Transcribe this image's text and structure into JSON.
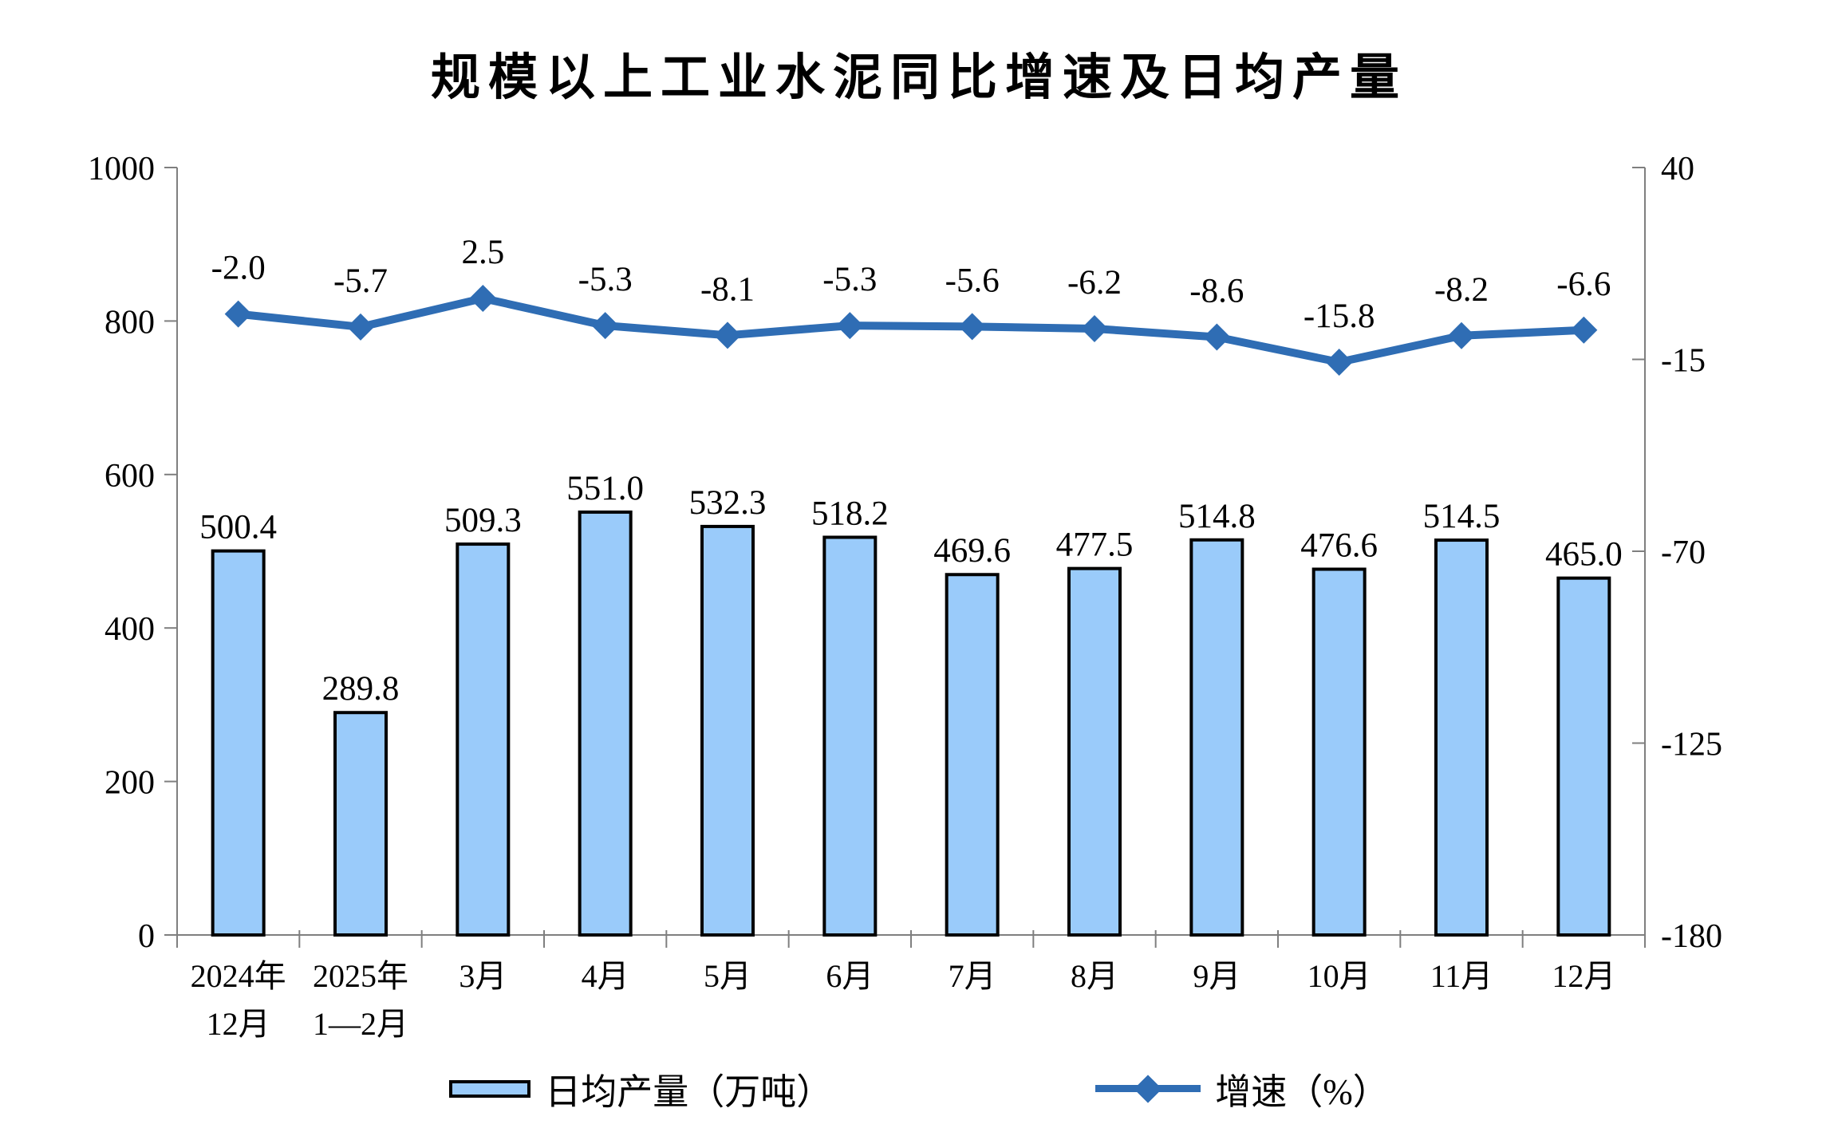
{
  "title": "规模以上工业水泥同比增速及日均产量",
  "legend": {
    "bar_label": "日均产量（万吨）",
    "line_label": "增速（%）"
  },
  "colors": {
    "bar_fill": "#9ACBFA",
    "bar_border": "#000000",
    "line": "#2F6DB4",
    "axis": "#7F7F7F",
    "text": "#000000"
  },
  "chart_data": {
    "type": "bar",
    "subtype": "combo-bar-line",
    "title": "规模以上工业水泥同比增速及日均产量",
    "categories": [
      [
        "2024年",
        "12月"
      ],
      [
        "2025年",
        "1—2月"
      ],
      [
        "3月"
      ],
      [
        "4月"
      ],
      [
        "5月"
      ],
      [
        "6月"
      ],
      [
        "7月"
      ],
      [
        "8月"
      ],
      [
        "9月"
      ],
      [
        "10月"
      ],
      [
        "11月"
      ],
      [
        "12月"
      ]
    ],
    "series": [
      {
        "name": "日均产量（万吨）",
        "type": "bar",
        "axis": "left",
        "values": [
          500.4,
          289.8,
          509.3,
          551.0,
          532.3,
          518.2,
          469.6,
          477.5,
          514.8,
          476.6,
          514.5,
          465.0
        ]
      },
      {
        "name": "增速（%）",
        "type": "line",
        "axis": "right",
        "values": [
          -2.0,
          -5.7,
          2.5,
          -5.3,
          -8.1,
          -5.3,
          -5.6,
          -6.2,
          -8.6,
          -15.8,
          -8.2,
          -6.6
        ]
      }
    ],
    "left_axis": {
      "min": 0,
      "max": 1000,
      "step": 200,
      "tick_labels": [
        "0",
        "200",
        "400",
        "600",
        "800",
        "1000"
      ]
    },
    "right_axis": {
      "min": -180,
      "max": 40,
      "step": 55,
      "tick_labels": [
        "-180",
        "-125",
        "-70",
        "-15",
        "40"
      ]
    },
    "grid": false,
    "legend_position": "bottom",
    "data_labels": true
  }
}
